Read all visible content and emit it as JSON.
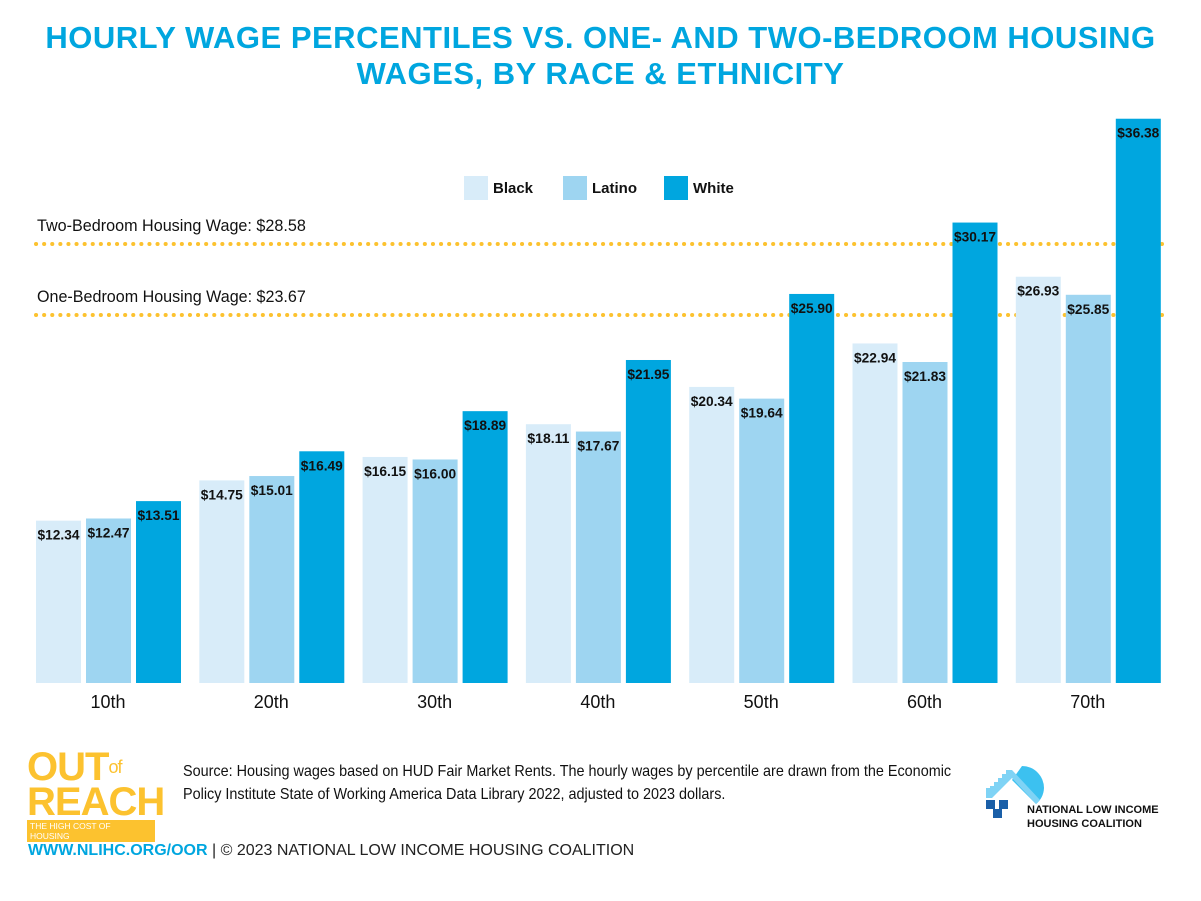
{
  "title": "HOURLY WAGE PERCENTILES VS. ONE- AND TWO-BEDROOM HOUSING WAGES, BY RACE & ETHNICITY",
  "colors": {
    "title": "#00a6df",
    "reference_line": "#fcc22f"
  },
  "chart_data": {
    "type": "bar",
    "categories": [
      "10th",
      "20th",
      "30th",
      "40th",
      "50th",
      "60th",
      "70th"
    ],
    "series": [
      {
        "name": "Black",
        "color": "#d8ecf9",
        "values": [
          12.34,
          14.75,
          16.15,
          18.11,
          20.34,
          22.94,
          26.93
        ],
        "labels": [
          "$12.34",
          "$14.75",
          "$16.15",
          "$18.11",
          "$20.34",
          "$22.94",
          "$26.93"
        ]
      },
      {
        "name": "Latino",
        "color": "#9ed5f1",
        "values": [
          12.47,
          15.01,
          16.0,
          17.67,
          19.64,
          21.83,
          25.85
        ],
        "labels": [
          "$12.47",
          "$15.01",
          "$16.00",
          "$17.67",
          "$19.64",
          "$21.83",
          "$25.85"
        ]
      },
      {
        "name": "White",
        "color": "#00a6df",
        "values": [
          13.51,
          16.49,
          18.89,
          21.95,
          25.9,
          30.17,
          36.38
        ],
        "labels": [
          "$13.51",
          "$16.49",
          "$18.89",
          "$21.95",
          "$25.90",
          "$30.17",
          "$36.38"
        ]
      }
    ],
    "reference_lines": [
      {
        "label": "Two-Bedroom Housing Wage: $28.58",
        "value": 28.58
      },
      {
        "label": "One-Bedroom Housing Wage: $23.67",
        "value": 23.67
      }
    ],
    "legend_placement": "top-center",
    "grid": false
  },
  "source": "Source: Housing wages based on HUD Fair Market Rents. The hourly wages by percentile are drawn from the Economic Policy Institute State of Working America Data Library 2022, adjusted to 2023 dollars.",
  "footer": {
    "url": "WWW.NLIHC.ORG/OOR",
    "copyright": " | © 2023 NATIONAL LOW INCOME HOUSING COALITION"
  },
  "logos": {
    "out_of_reach": {
      "line1": "OUT",
      "of": "of",
      "line2": "REACH",
      "tagline": "THE HIGH COST OF HOUSING"
    },
    "nlihc": {
      "line1": "NATIONAL LOW INCOME",
      "line2": "HOUSING COALITION"
    }
  }
}
